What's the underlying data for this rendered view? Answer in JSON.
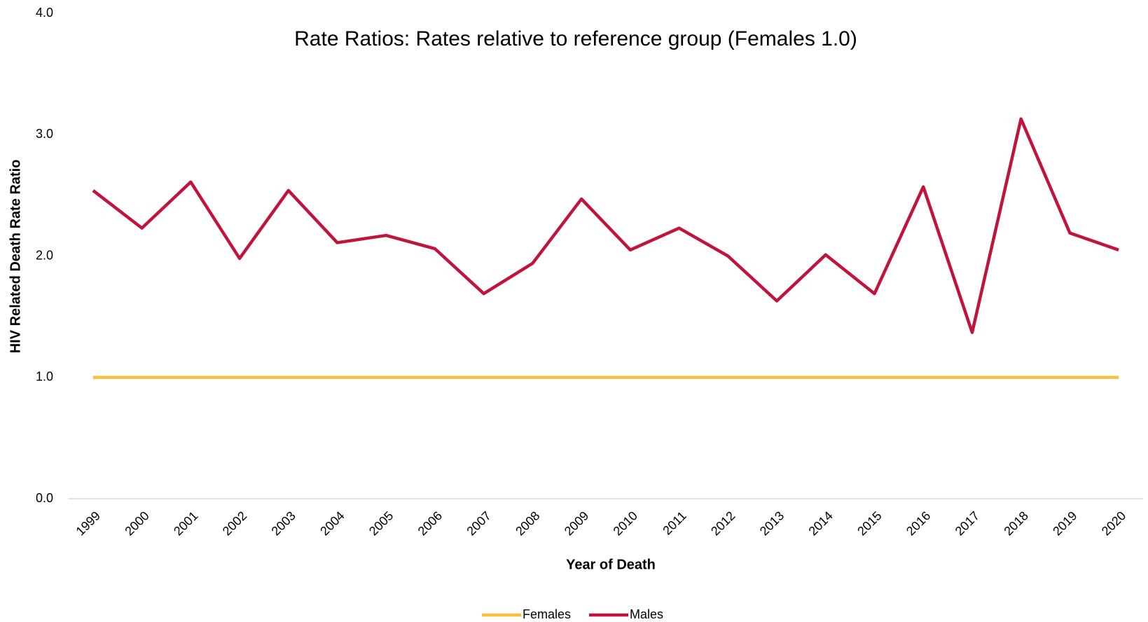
{
  "chart_data": {
    "type": "line",
    "title": "Rate Ratios: Rates relative to reference group (Females 1.0)",
    "x_label": "Year of Death",
    "y_label": "HIV Related Death Rate Ratio",
    "categories": [
      "1999",
      "2000",
      "2001",
      "2002",
      "2003",
      "2004",
      "2005",
      "2006",
      "2007",
      "2008",
      "2009",
      "2010",
      "2011",
      "2012",
      "2013",
      "2014",
      "2015",
      "2016",
      "2017",
      "2018",
      "2019",
      "2020"
    ],
    "series": [
      {
        "name": "Females",
        "color": "#fbbf3b",
        "values": [
          1,
          1,
          1,
          1,
          1,
          1,
          1,
          1,
          1,
          1,
          1,
          1,
          1,
          1,
          1,
          1,
          1,
          1,
          1,
          1,
          1,
          1
        ]
      },
      {
        "name": "Males",
        "color": "#c0143c",
        "values": [
          2.54,
          2.23,
          2.61,
          1.98,
          2.54,
          2.11,
          2.17,
          2.06,
          1.69,
          1.94,
          2.47,
          2.05,
          2.23,
          2.0,
          1.63,
          2.01,
          1.69,
          2.57,
          1.37,
          3.13,
          2.19,
          2.05
        ]
      }
    ],
    "ylim": [
      0,
      4
    ],
    "yticks": [
      {
        "value": 0,
        "label": "0.0"
      },
      {
        "value": 1,
        "label": "1.0"
      },
      {
        "value": 2,
        "label": "2.0"
      },
      {
        "value": 3,
        "label": "3.0"
      },
      {
        "value": 4,
        "label": "4.0"
      }
    ],
    "grid": false,
    "legend": "bottom"
  }
}
